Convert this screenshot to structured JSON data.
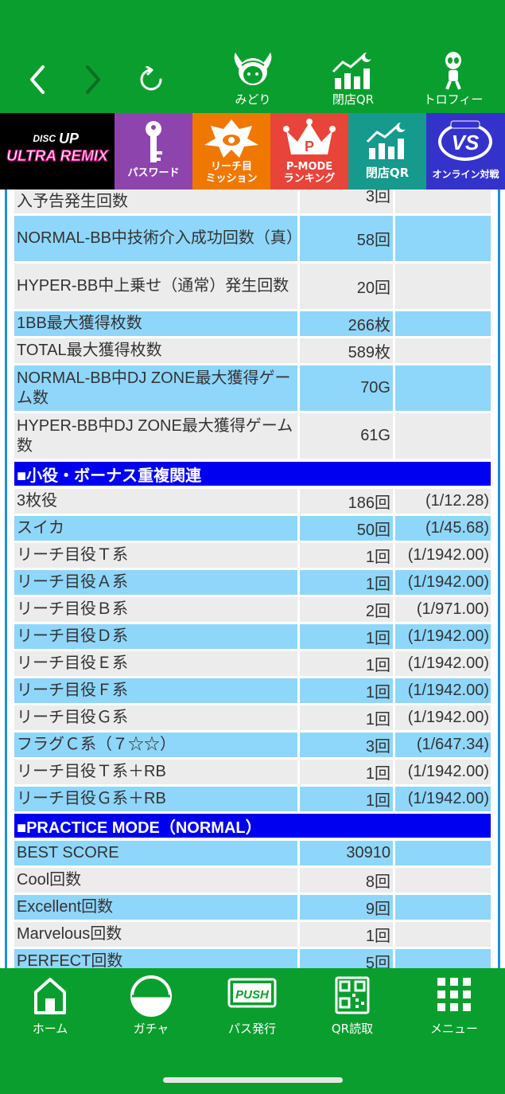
{
  "top_nav": {
    "items": [
      {
        "label": "みどり"
      },
      {
        "label": "閉店QR"
      },
      {
        "label": "トロフィー"
      }
    ]
  },
  "tiles": [
    {
      "label": "DISC UP ULTRA REMIX",
      "color": "#000000"
    },
    {
      "label": "パスワード",
      "color": "#8e44ad"
    },
    {
      "label": "リーチ目\nミッション",
      "color": "#f07800"
    },
    {
      "label": "P-MODE\nランキング",
      "color": "#e8443a"
    },
    {
      "label": "閉店QR",
      "color": "#159a8d"
    },
    {
      "label": "オンライン対戦",
      "color": "#3333cc"
    }
  ],
  "table": {
    "rows_top": [
      {
        "label": "入予告発生回数",
        "value": "3回",
        "extra": ""
      },
      {
        "label": "NORMAL-BB中技術介入成功回数（真）",
        "value": "58回",
        "extra": ""
      },
      {
        "label": "HYPER-BB中上乗せ（通常）発生回数",
        "value": "20回",
        "extra": ""
      },
      {
        "label": "1BB最大獲得枚数",
        "value": "266枚",
        "extra": ""
      },
      {
        "label": "TOTAL最大獲得枚数",
        "value": "589枚",
        "extra": ""
      },
      {
        "label": "NORMAL-BB中DJ ZONE最大獲得ゲーム数",
        "value": "70G",
        "extra": ""
      },
      {
        "label": "HYPER-BB中DJ ZONE最大獲得ゲーム数",
        "value": "61G",
        "extra": ""
      }
    ],
    "section1": "■小役・ボーナス重複関連",
    "rows_mid": [
      {
        "label": "3枚役",
        "value": "186回",
        "extra": "(1/12.28)"
      },
      {
        "label": "スイカ",
        "value": "50回",
        "extra": "(1/45.68)"
      },
      {
        "label": "リーチ目役Ｔ系",
        "value": "1回",
        "extra": "(1/1942.00)"
      },
      {
        "label": "リーチ目役Ａ系",
        "value": "1回",
        "extra": "(1/1942.00)"
      },
      {
        "label": "リーチ目役Ｂ系",
        "value": "2回",
        "extra": "(1/971.00)"
      },
      {
        "label": "リーチ目役Ｄ系",
        "value": "1回",
        "extra": "(1/1942.00)"
      },
      {
        "label": "リーチ目役Ｅ系",
        "value": "1回",
        "extra": "(1/1942.00)"
      },
      {
        "label": "リーチ目役Ｆ系",
        "value": "1回",
        "extra": "(1/1942.00)"
      },
      {
        "label": "リーチ目役Ｇ系",
        "value": "1回",
        "extra": "(1/1942.00)"
      },
      {
        "label": "フラグＣ系（７☆☆）",
        "value": "3回",
        "extra": "(1/647.34)"
      },
      {
        "label": "リーチ目役Ｔ系＋RB",
        "value": "1回",
        "extra": "(1/1942.00)"
      },
      {
        "label": "リーチ目役Ｇ系＋RB",
        "value": "1回",
        "extra": "(1/1942.00)"
      }
    ],
    "section2": "■PRACTICE MODE（NORMAL）",
    "rows_bottom": [
      {
        "label": "BEST SCORE",
        "value": "30910",
        "extra": ""
      },
      {
        "label": "Cool回数",
        "value": "8回",
        "extra": ""
      },
      {
        "label": "Excellent回数",
        "value": "9回",
        "extra": ""
      },
      {
        "label": "Marvelous回数",
        "value": "1回",
        "extra": ""
      },
      {
        "label": "PERFECT回数",
        "value": "5回",
        "extra": ""
      }
    ]
  },
  "bottom_nav": {
    "items": [
      {
        "label": "ホーム"
      },
      {
        "label": "ガチャ"
      },
      {
        "label": "パス発行"
      },
      {
        "label": "QR読取"
      },
      {
        "label": "メニュー"
      }
    ]
  },
  "colors": {
    "brand_green": "#0a9e2e",
    "row_blue": "#8fd6fb",
    "row_gray": "#ececec",
    "section_blue": "#0000f0",
    "frame_blue": "#1c8fd9"
  }
}
